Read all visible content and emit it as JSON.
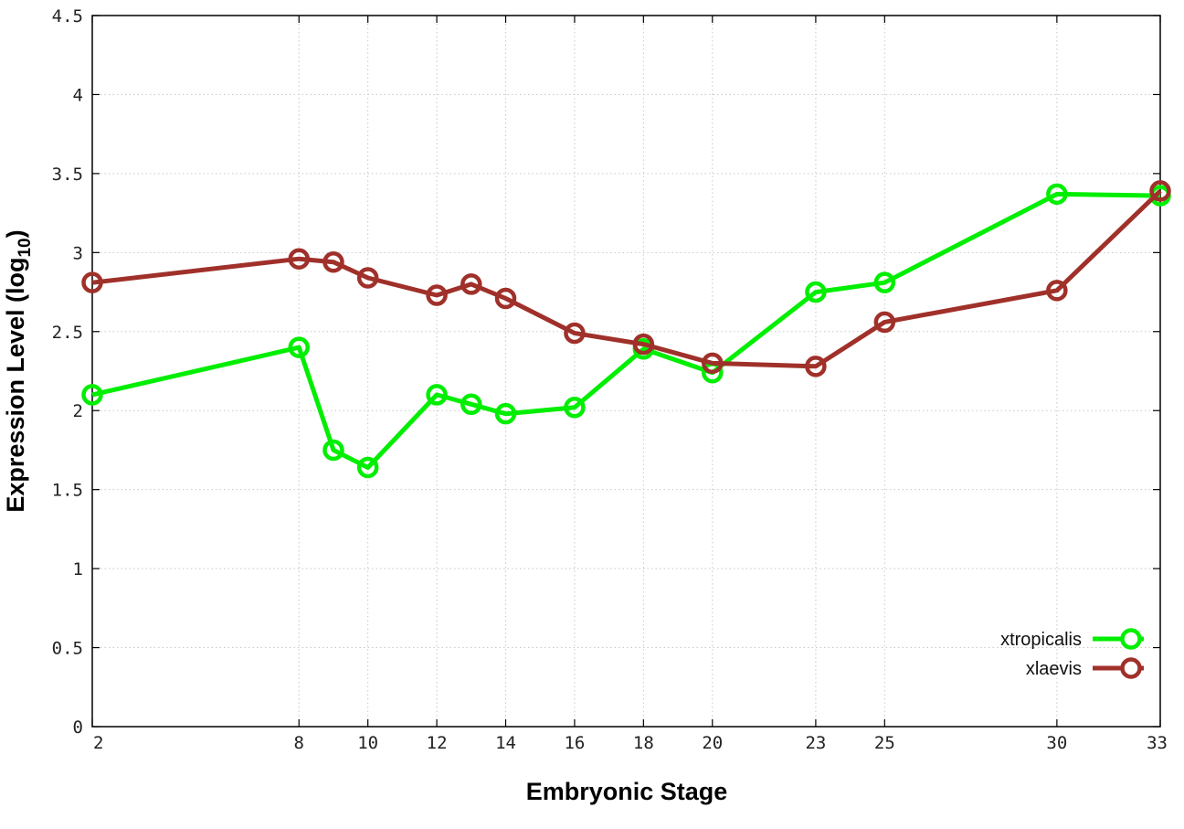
{
  "chart_data": {
    "type": "line",
    "xlabel": "Embryonic Stage",
    "ylabel": {
      "base": "Expression Level (log",
      "sub": "10",
      "close": ")"
    },
    "xlim": [
      2,
      33
    ],
    "ylim": [
      0,
      4.5
    ],
    "x_ticks": [
      2,
      8,
      10,
      12,
      14,
      16,
      18,
      20,
      23,
      25,
      30,
      33
    ],
    "y_ticks": [
      {
        "value": 0,
        "label": "0"
      },
      {
        "value": 0.5,
        "label": "0.5"
      },
      {
        "value": 1,
        "label": "1"
      },
      {
        "value": 1.5,
        "label": "1.5"
      },
      {
        "value": 2,
        "label": "2"
      },
      {
        "value": 2.5,
        "label": "2.5"
      },
      {
        "value": 3,
        "label": "3"
      },
      {
        "value": 3.5,
        "label": "3.5"
      },
      {
        "value": 4,
        "label": "4"
      },
      {
        "value": 4.5,
        "label": "4.5"
      }
    ],
    "grid": true,
    "legend_position": "bottom-right",
    "x": [
      2,
      8,
      9,
      10,
      12,
      13,
      14,
      16,
      18,
      20,
      23,
      25,
      30,
      33
    ],
    "series": [
      {
        "name": "xtropicalis",
        "color": "#00ee00",
        "values": [
          2.1,
          2.4,
          1.75,
          1.64,
          2.1,
          2.04,
          1.98,
          2.02,
          2.39,
          2.24,
          2.75,
          2.81,
          3.37,
          3.36
        ]
      },
      {
        "name": "xlaevis",
        "color": "#a0302a",
        "values": [
          2.81,
          2.96,
          2.94,
          2.84,
          2.73,
          2.8,
          2.71,
          2.49,
          2.42,
          2.3,
          2.28,
          2.56,
          2.76,
          3.39
        ]
      }
    ]
  }
}
